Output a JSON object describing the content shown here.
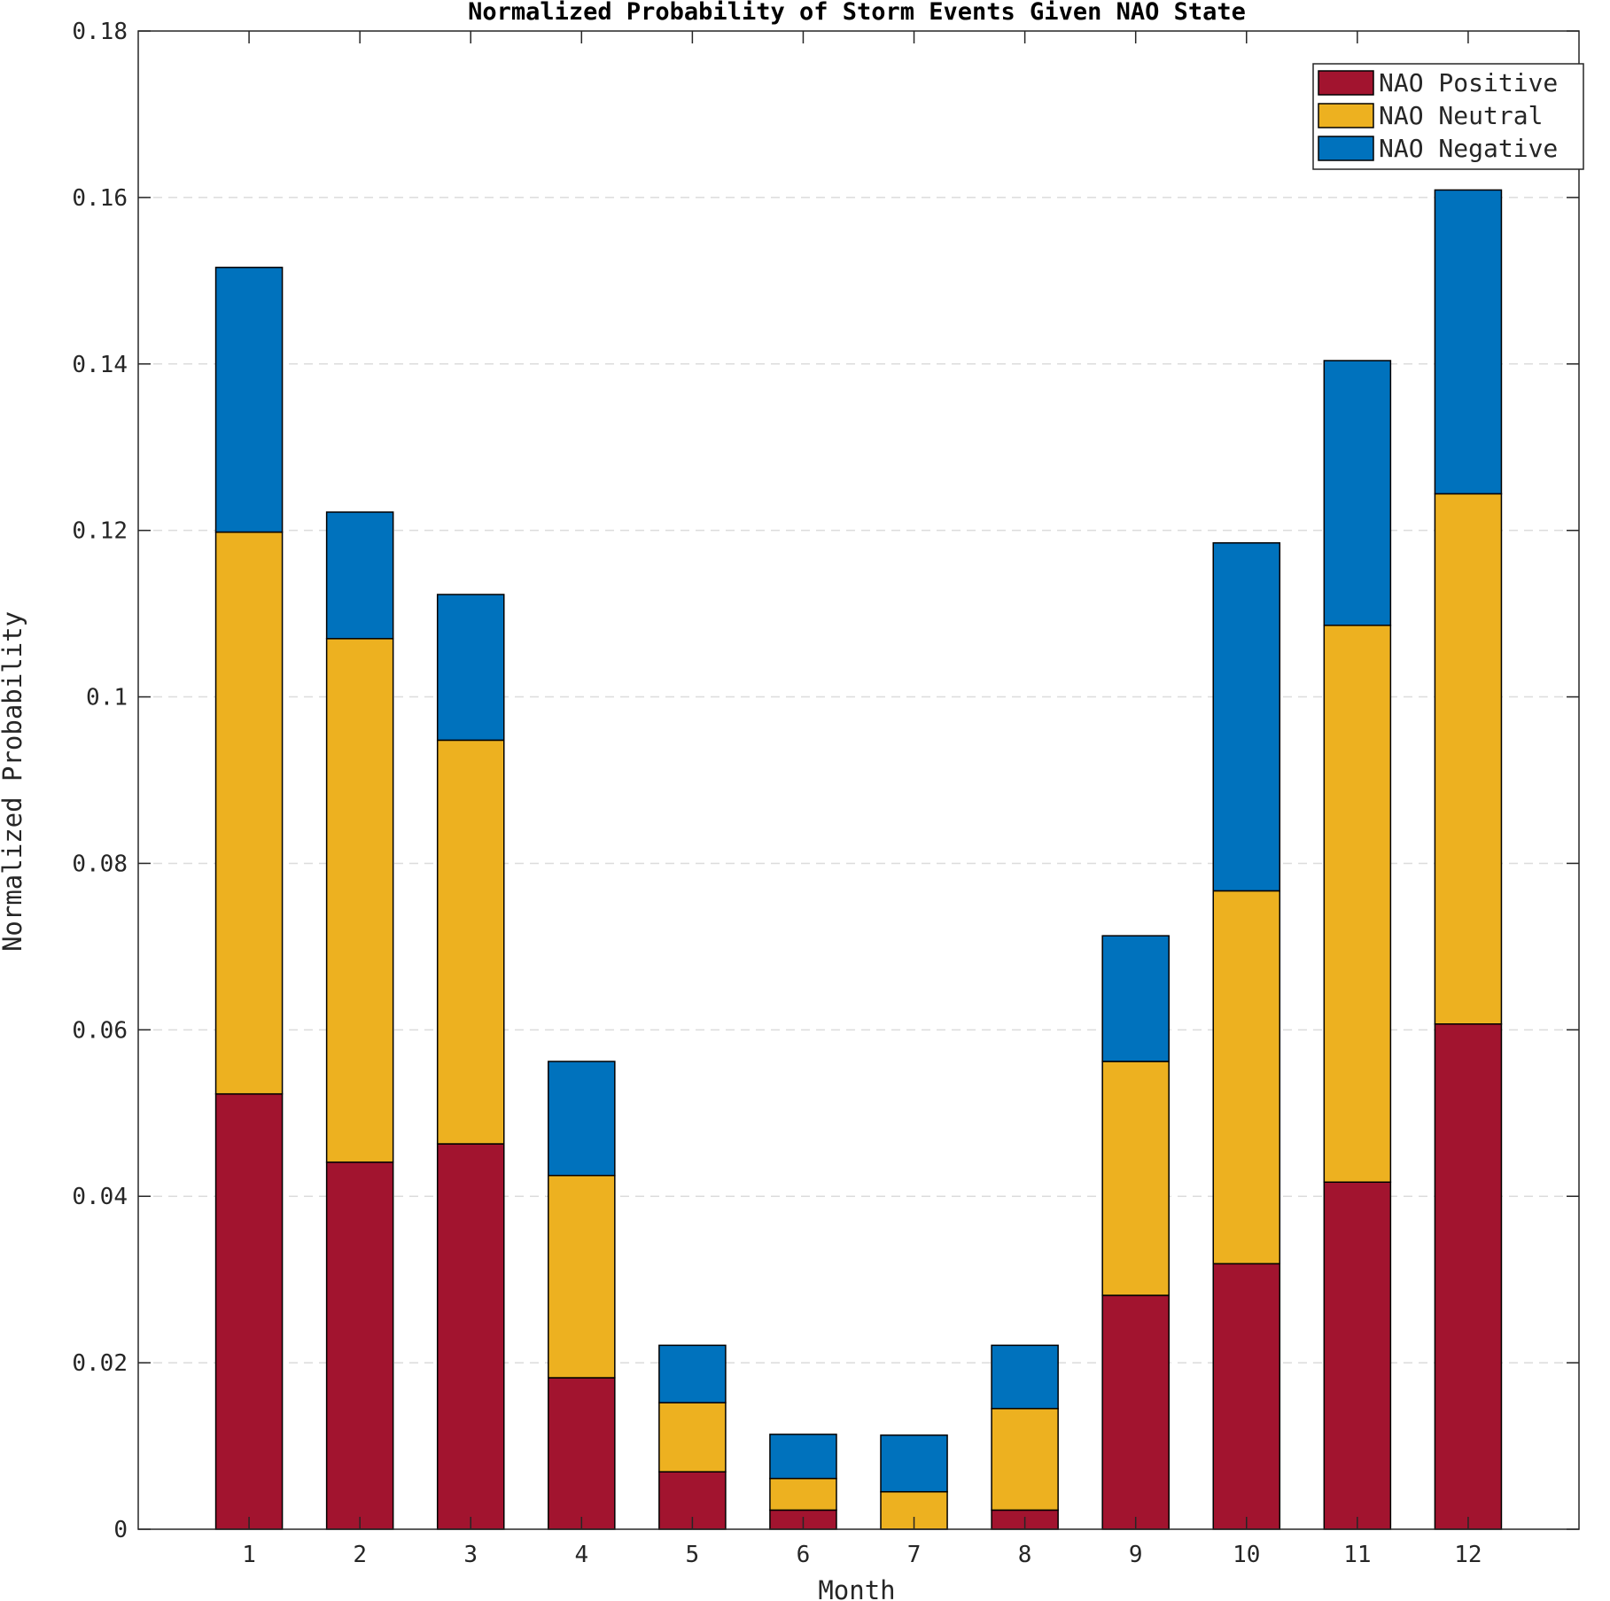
{
  "chart_data": {
    "type": "bar",
    "stacked": true,
    "title": "Normalized Probability of Storm Events Given NAO State",
    "xlabel": "Month",
    "ylabel": "Normalized Probability",
    "categories": [
      "1",
      "2",
      "3",
      "4",
      "5",
      "6",
      "7",
      "8",
      "9",
      "10",
      "11",
      "12"
    ],
    "ylim": [
      0,
      0.18
    ],
    "yticks": [
      0,
      0.02,
      0.04,
      0.06,
      0.08,
      0.1,
      0.12,
      0.14,
      0.16,
      0.18
    ],
    "ytick_labels": [
      "0",
      "0.02",
      "0.04",
      "0.06",
      "0.08",
      "0.1",
      "0.12",
      "0.14",
      "0.16",
      "0.18"
    ],
    "grid": "y-dashed",
    "legend_position": "top-right",
    "series": [
      {
        "name": "NAO Positive",
        "color": "#A2142F",
        "values": [
          0.0523,
          0.0441,
          0.0463,
          0.0182,
          0.0069,
          0.0023,
          0.0,
          0.0023,
          0.0281,
          0.0319,
          0.0417,
          0.0607
        ]
      },
      {
        "name": "NAO Neutral",
        "color": "#EDB120",
        "values": [
          0.0675,
          0.0629,
          0.0485,
          0.0243,
          0.0083,
          0.0038,
          0.0045,
          0.0122,
          0.0281,
          0.0448,
          0.0669,
          0.0637
        ]
      },
      {
        "name": "NAO Negative",
        "color": "#0072BD",
        "values": [
          0.0318,
          0.0152,
          0.0175,
          0.0137,
          0.0069,
          0.0053,
          0.0068,
          0.0076,
          0.0151,
          0.0418,
          0.0318,
          0.0365
        ]
      }
    ]
  }
}
